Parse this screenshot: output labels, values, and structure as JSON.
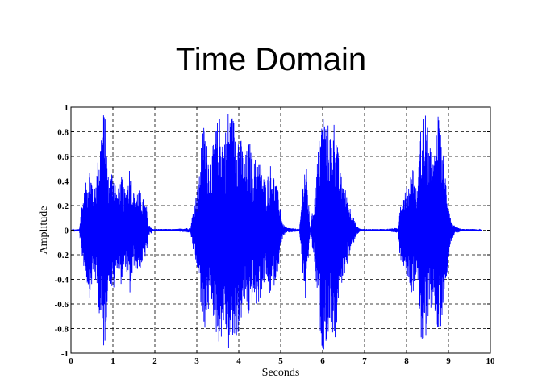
{
  "chart_data": {
    "type": "line",
    "title": "Time Domain",
    "xlabel": "Seconds",
    "ylabel": "Amplitude",
    "xlim": [
      0,
      10
    ],
    "ylim": [
      -1,
      1
    ],
    "grid": true,
    "series_color": "#0000ff",
    "x_ticks": [
      "0",
      "1",
      "2",
      "3",
      "4",
      "5",
      "6",
      "7",
      "8",
      "9",
      "10"
    ],
    "y_ticks": [
      "1",
      "0.8",
      "0.6",
      "0.4",
      "0.2",
      "0",
      "-0.2",
      "-0.4",
      "-0.6",
      "-0.8",
      "-1"
    ],
    "series": [
      {
        "envelope": {
          "x": [
            0,
            0.2,
            0.25,
            0.35,
            0.45,
            0.55,
            0.65,
            0.75,
            0.8,
            0.9,
            1.0,
            1.1,
            1.2,
            1.3,
            1.4,
            1.5,
            1.6,
            1.7,
            1.8,
            1.85,
            1.95,
            2.5,
            2.85,
            2.95,
            3.05,
            3.15,
            3.25,
            3.35,
            3.45,
            3.55,
            3.65,
            3.75,
            3.85,
            3.95,
            4.05,
            4.15,
            4.25,
            4.35,
            4.45,
            4.55,
            4.65,
            4.75,
            4.85,
            4.95,
            5.05,
            5.15,
            5.45,
            5.5,
            5.55,
            5.6,
            5.7,
            5.8,
            5.9,
            6.0,
            6.1,
            6.2,
            6.3,
            6.4,
            6.5,
            6.6,
            6.7,
            6.8,
            6.9,
            7.5,
            7.8,
            7.85,
            7.95,
            8.05,
            8.15,
            8.25,
            8.35,
            8.45,
            8.55,
            8.65,
            8.75,
            8.85,
            8.95,
            9.05,
            9.15,
            9.3,
            9.45,
            9.6,
            9.8
          ],
          "y": [
            0.0,
            0.01,
            0.2,
            0.38,
            0.55,
            0.35,
            0.6,
            0.95,
            1.0,
            0.4,
            0.55,
            0.3,
            0.45,
            0.3,
            0.55,
            0.3,
            0.35,
            0.28,
            0.2,
            0.05,
            0.01,
            0.01,
            0.02,
            0.25,
            0.4,
            0.9,
            0.7,
            0.6,
            0.85,
            0.95,
            0.75,
            1.0,
            0.95,
            0.9,
            0.75,
            0.6,
            0.75,
            0.55,
            0.65,
            0.5,
            0.4,
            0.55,
            0.45,
            0.3,
            0.05,
            0.02,
            0.01,
            0.25,
            0.5,
            0.6,
            0.02,
            0.25,
            0.7,
            1.0,
            0.9,
            0.8,
            0.95,
            0.5,
            0.4,
            0.25,
            0.15,
            0.04,
            0.01,
            0.01,
            0.02,
            0.25,
            0.3,
            0.4,
            0.55,
            0.3,
            0.9,
            1.0,
            0.7,
            0.55,
            0.95,
            0.7,
            0.4,
            0.1,
            0.03,
            0.01,
            0.01,
            0.01,
            0.0
          ]
        }
      }
    ]
  }
}
